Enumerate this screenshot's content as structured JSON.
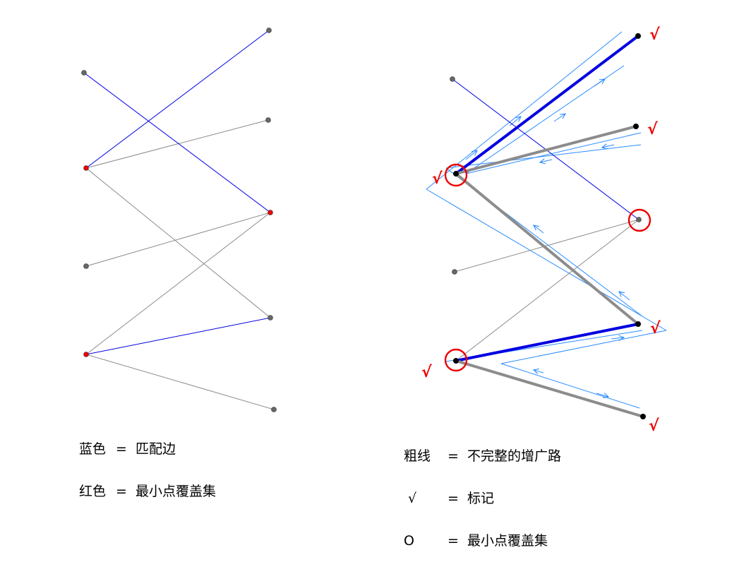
{
  "colors": {
    "matching": "#0000e0",
    "edge": "#8c8c8c",
    "cover": "#ee0000",
    "path_trace": "#2a8cff",
    "node": "#666666",
    "node_dark": "#000000"
  },
  "left_legend": [
    {
      "symbol": "蓝色",
      "equals": "=",
      "meaning": "匹配边"
    },
    {
      "symbol": "红色",
      "equals": "=",
      "meaning": "最小点覆盖集"
    }
  ],
  "right_legend": [
    {
      "symbol": "粗线",
      "equals": "=",
      "meaning": "不完整的增广路"
    },
    {
      "symbol": " √",
      "equals": "=",
      "meaning": "标记"
    },
    {
      "symbol": "O",
      "equals": "=",
      "meaning": "最小点覆盖集"
    }
  ],
  "check_mark": "√"
}
